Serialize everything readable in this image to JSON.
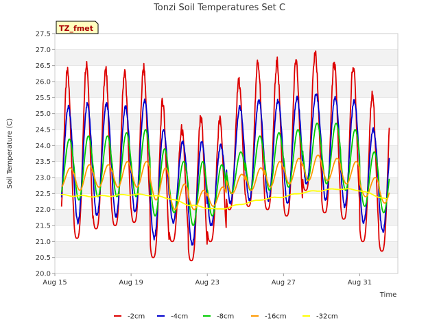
{
  "chart_data": {
    "type": "line",
    "title": "Tonzi Soil Temperatures Set C",
    "xlabel": "Time",
    "ylabel": "Soil Temperature (C)",
    "badge": "TZ_fmet",
    "x_ticks": [
      {
        "day": 15,
        "label": "Aug 15"
      },
      {
        "day": 19,
        "label": "Aug 19"
      },
      {
        "day": 23,
        "label": "Aug 23"
      },
      {
        "day": 27,
        "label": "Aug 27"
      },
      {
        "day": 31,
        "label": "Aug 31"
      }
    ],
    "xlim_days": [
      15,
      33
    ],
    "ylim": [
      20.0,
      27.5
    ],
    "y_ticks": [
      "20.0",
      "20.5",
      "21.0",
      "21.5",
      "22.0",
      "22.5",
      "23.0",
      "23.5",
      "24.0",
      "24.5",
      "25.0",
      "25.5",
      "26.0",
      "26.5",
      "27.0",
      "27.5"
    ],
    "grid": "horizontal bands",
    "legend_position": "bottom",
    "series": [
      {
        "name": "-2cm",
        "color": "#dd0000",
        "daily_min": [
          21.3,
          21.1,
          21.4,
          21.5,
          21.6,
          20.5,
          21.0,
          20.4,
          21.0,
          22.0,
          22.1,
          22.0,
          21.8,
          22.6,
          21.9,
          21.7,
          21.0,
          20.7
        ],
        "daily_max": [
          26.3,
          26.6,
          26.4,
          26.3,
          26.4,
          25.4,
          24.5,
          24.9,
          24.8,
          26.0,
          26.6,
          26.6,
          26.7,
          26.9,
          26.6,
          26.5,
          25.6,
          25.4
        ]
      },
      {
        "name": "-4cm",
        "color": "#0000cc",
        "daily_min": [
          21.8,
          21.6,
          21.8,
          21.8,
          21.9,
          21.1,
          21.6,
          20.9,
          21.5,
          22.2,
          22.3,
          22.3,
          22.2,
          22.8,
          22.3,
          22.1,
          21.6,
          21.3
        ],
        "daily_max": [
          25.2,
          25.3,
          25.3,
          25.2,
          25.4,
          24.5,
          24.1,
          24.1,
          24.0,
          25.2,
          25.4,
          25.4,
          25.5,
          25.6,
          25.5,
          25.4,
          24.5,
          24.3
        ]
      },
      {
        "name": "-8cm",
        "color": "#00cc00",
        "daily_min": [
          22.4,
          22.3,
          22.4,
          22.4,
          22.4,
          21.8,
          21.9,
          21.5,
          21.8,
          22.5,
          22.6,
          22.6,
          22.7,
          22.9,
          22.8,
          22.6,
          22.1,
          21.9
        ],
        "daily_max": [
          24.2,
          24.3,
          24.3,
          24.4,
          24.5,
          23.9,
          23.5,
          23.5,
          23.4,
          23.8,
          24.3,
          24.4,
          24.5,
          24.7,
          24.7,
          24.5,
          23.8,
          23.6
        ],
        "start_value": 23.45
      },
      {
        "name": "-16cm",
        "color": "#ff9900",
        "daily_min": [
          22.7,
          22.6,
          22.7,
          22.7,
          22.7,
          22.3,
          22.0,
          22.0,
          22.1,
          22.5,
          22.6,
          22.7,
          22.8,
          22.9,
          22.9,
          22.8,
          22.4,
          22.2
        ],
        "daily_max": [
          23.3,
          23.4,
          23.4,
          23.5,
          23.5,
          23.3,
          22.8,
          22.6,
          22.7,
          23.1,
          23.3,
          23.5,
          23.6,
          23.7,
          23.6,
          23.5,
          23.0,
          22.9
        ],
        "start_value": 23.3
      },
      {
        "name": "-32cm",
        "color": "#ffff00",
        "level_points": [
          [
            15.3,
            22.45
          ],
          [
            16,
            22.43
          ],
          [
            17,
            22.41
          ],
          [
            18,
            22.43
          ],
          [
            19,
            22.47
          ],
          [
            20,
            22.45
          ],
          [
            21,
            22.35
          ],
          [
            22,
            22.15
          ],
          [
            23,
            22.05
          ],
          [
            23.5,
            22.0
          ],
          [
            24,
            22.05
          ],
          [
            25,
            22.2
          ],
          [
            26,
            22.33
          ],
          [
            27,
            22.4
          ],
          [
            28,
            22.53
          ],
          [
            29,
            22.6
          ],
          [
            30,
            22.65
          ],
          [
            31,
            22.6
          ],
          [
            32,
            22.4
          ],
          [
            32.5,
            22.3
          ]
        ]
      }
    ]
  }
}
